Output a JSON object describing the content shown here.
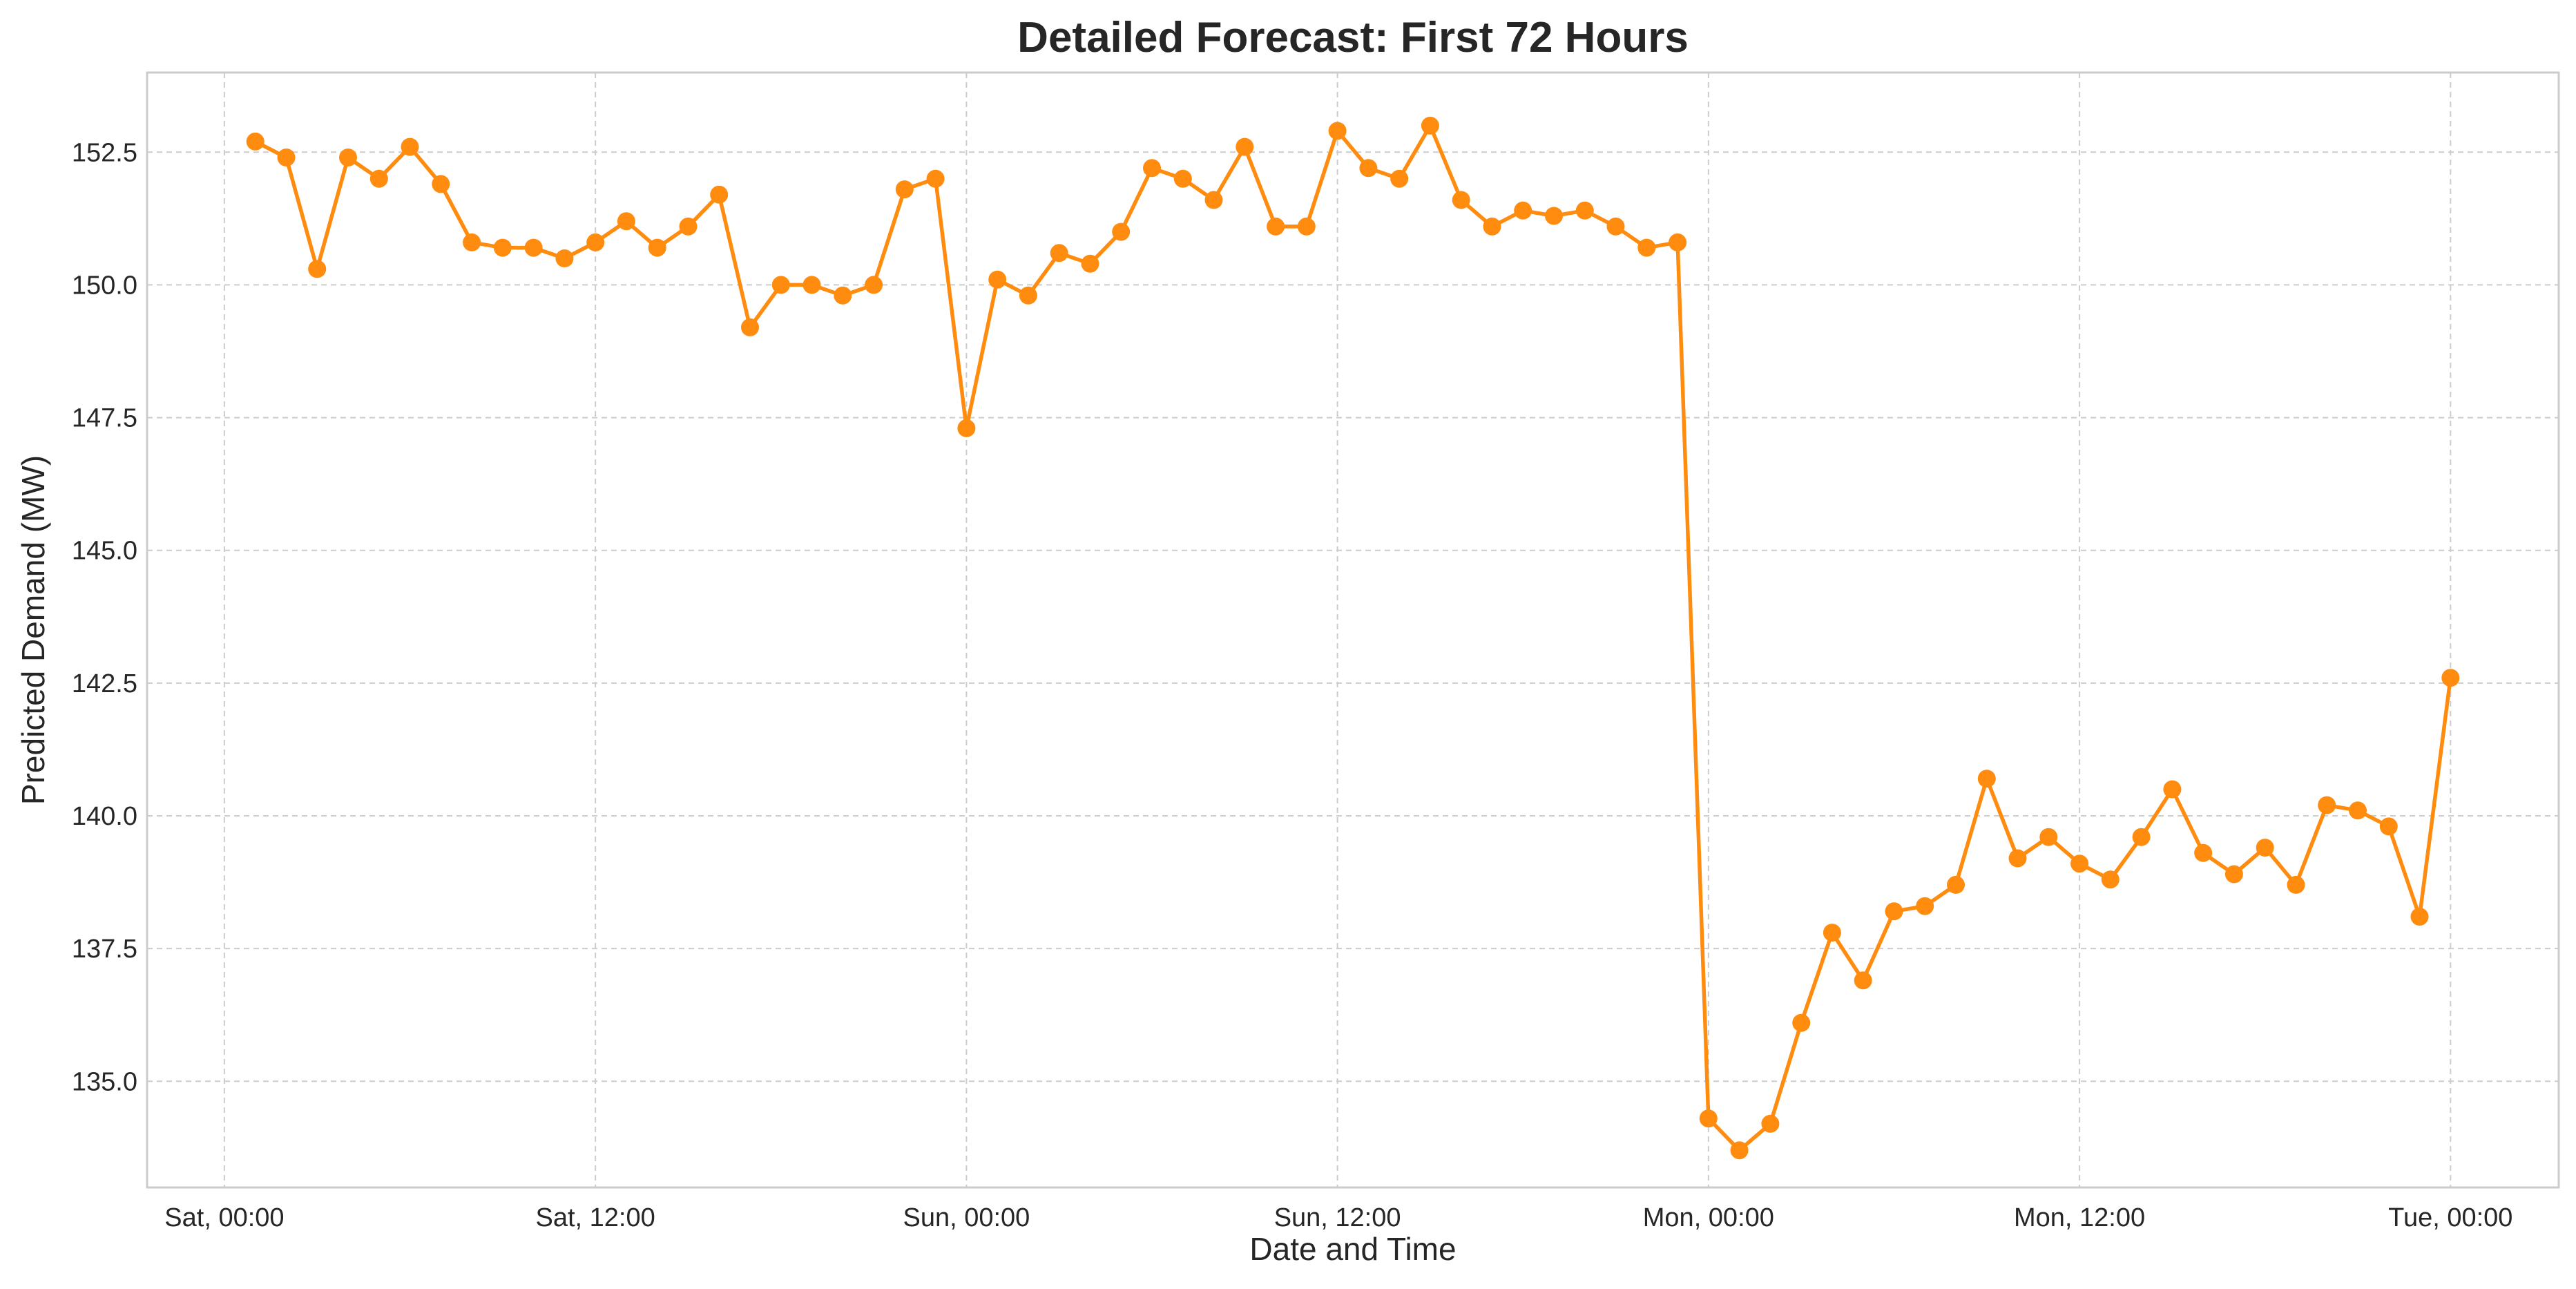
{
  "chart_data": {
    "type": "line",
    "title": "Detailed Forecast: First 72 Hours",
    "xlabel": "Date and Time",
    "ylabel": "Predicted Demand (MW)",
    "x_ticks": [
      {
        "hour": 0,
        "label": "Sat, 00:00"
      },
      {
        "hour": 12,
        "label": "Sat, 12:00"
      },
      {
        "hour": 24,
        "label": "Sun, 00:00"
      },
      {
        "hour": 36,
        "label": "Sun, 12:00"
      },
      {
        "hour": 48,
        "label": "Mon, 00:00"
      },
      {
        "hour": 60,
        "label": "Mon, 12:00"
      },
      {
        "hour": 72,
        "label": "Tue, 00:00"
      }
    ],
    "y_ticks": [
      135.0,
      137.5,
      140.0,
      142.5,
      145.0,
      147.5,
      150.0,
      152.5
    ],
    "y_tick_labels": [
      "135.0",
      "137.5",
      "140.0",
      "142.5",
      "145.0",
      "147.5",
      "150.0",
      "152.5"
    ],
    "xlim_hours": [
      -2.5,
      75.5
    ],
    "ylim": [
      133.0,
      154.0
    ],
    "grid": true,
    "legend": "none",
    "series": [
      {
        "color": "#ff8c0e",
        "hours": [
          1,
          2,
          3,
          4,
          5,
          6,
          7,
          8,
          9,
          10,
          11,
          12,
          13,
          14,
          15,
          16,
          17,
          18,
          19,
          20,
          21,
          22,
          23,
          24,
          25,
          26,
          27,
          28,
          29,
          30,
          31,
          32,
          33,
          34,
          35,
          36,
          37,
          38,
          39,
          40,
          41,
          42,
          43,
          44,
          45,
          46,
          47,
          48,
          49,
          50,
          51,
          52,
          53,
          54,
          55,
          56,
          57,
          58,
          59,
          60,
          61,
          62,
          63,
          64,
          65,
          66,
          67,
          68,
          69,
          70,
          71,
          72
        ],
        "values": [
          152.7,
          152.4,
          150.3,
          152.4,
          152.0,
          152.6,
          151.9,
          150.8,
          150.7,
          150.7,
          150.5,
          150.8,
          151.2,
          150.7,
          151.1,
          151.7,
          149.2,
          150.0,
          150.0,
          149.8,
          150.0,
          151.8,
          152.0,
          147.3,
          150.1,
          149.8,
          150.6,
          150.4,
          151.0,
          152.2,
          152.0,
          151.6,
          152.6,
          151.1,
          151.1,
          152.9,
          152.2,
          152.0,
          153.0,
          151.6,
          151.1,
          151.4,
          151.3,
          151.4,
          151.1,
          150.7,
          150.8,
          134.3,
          133.7,
          134.2,
          136.1,
          137.8,
          136.9,
          138.2,
          138.3,
          138.7,
          140.7,
          139.2,
          139.6,
          139.1,
          138.8,
          139.6,
          140.5,
          139.3,
          138.9,
          139.4,
          138.7,
          140.2,
          140.1,
          139.8,
          138.1,
          142.6
        ]
      }
    ]
  }
}
